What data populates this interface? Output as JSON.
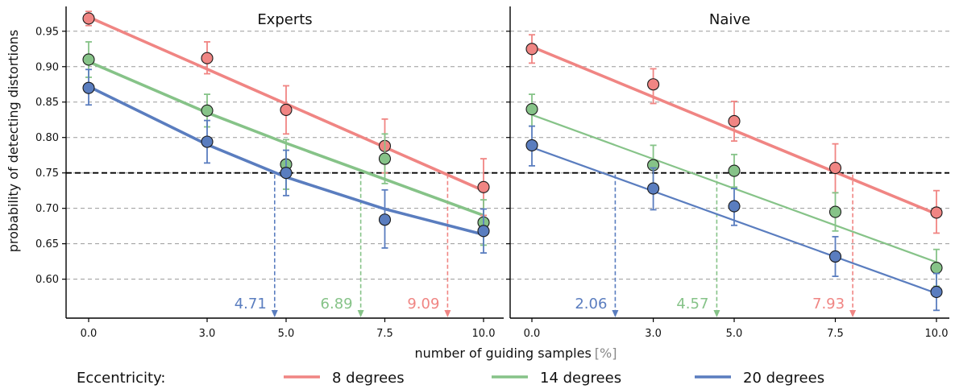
{
  "chart_data": {
    "type": "line",
    "ylabel": "probability of detecting distortions",
    "xlabel": "number of guiding samples",
    "xlabel_unit": "[%]",
    "threshold": 0.75,
    "x_ticks": [
      0.0,
      3.0,
      5.0,
      7.5,
      10.0
    ],
    "x_tick_labels": [
      "0.0",
      "3.0",
      "5.0",
      "7.5",
      "10.0"
    ],
    "y_ticks": [
      0.6,
      0.65,
      0.7,
      0.75,
      0.8,
      0.85,
      0.9,
      0.95
    ],
    "y_tick_labels": [
      "0.60",
      "0.65",
      "0.70",
      "0.75",
      "0.80",
      "0.85",
      "0.90",
      "0.95"
    ],
    "ylim": [
      0.545,
      0.985
    ],
    "xlim": [
      -0.6,
      10.5
    ],
    "grid": "horizontal-dashed",
    "legend": {
      "title": "Eccentricity:",
      "placement": "bottom",
      "entries": [
        "8 degrees",
        "14 degrees",
        "20 degrees"
      ]
    },
    "colors": {
      "8 degrees": "#f08583",
      "14 degrees": "#86c388",
      "20 degrees": "#5a7dbf"
    },
    "panels": [
      {
        "title": "Experts",
        "series": [
          {
            "name": "8 degrees",
            "x": [
              0,
              3,
              5,
              7.5,
              10
            ],
            "y": [
              0.968,
              0.912,
              0.839,
              0.788,
              0.73
            ],
            "err_low": [
              0.958,
              0.89,
              0.805,
              0.75,
              0.69
            ],
            "err_high": [
              0.978,
              0.935,
              0.873,
              0.826,
              0.77
            ],
            "fit": [
              [
                0,
                0.97
              ],
              [
                10,
                0.725
              ]
            ],
            "threshold_x": 9.09
          },
          {
            "name": "14 degrees",
            "x": [
              0,
              3,
              5,
              7.5,
              10
            ],
            "y": [
              0.91,
              0.838,
              0.762,
              0.77,
              0.68
            ],
            "err_low": [
              0.885,
              0.815,
              0.727,
              0.735,
              0.648
            ],
            "err_high": [
              0.935,
              0.861,
              0.797,
              0.805,
              0.712
            ],
            "fit": [
              [
                0,
                0.907
              ],
              [
                3,
                0.835
              ],
              [
                5,
                0.792
              ],
              [
                7.5,
                0.741
              ],
              [
                10,
                0.69
              ]
            ],
            "threshold_x": 6.89
          },
          {
            "name": "20 degrees",
            "x": [
              0,
              3,
              5,
              7.5,
              10
            ],
            "y": [
              0.87,
              0.794,
              0.75,
              0.684,
              0.668
            ],
            "err_low": [
              0.846,
              0.764,
              0.718,
              0.644,
              0.637
            ],
            "err_high": [
              0.896,
              0.824,
              0.782,
              0.726,
              0.699
            ],
            "fit": [
              [
                0,
                0.872
              ],
              [
                3,
                0.79
              ],
              [
                5,
                0.744
              ],
              [
                7.5,
                0.699
              ],
              [
                10,
                0.663
              ]
            ],
            "threshold_x": 4.71
          }
        ]
      },
      {
        "title": "Naive",
        "series": [
          {
            "name": "8 degrees",
            "x": [
              0,
              3,
              5,
              7.5,
              10
            ],
            "y": [
              0.925,
              0.875,
              0.823,
              0.757,
              0.694
            ],
            "err_low": [
              0.905,
              0.848,
              0.795,
              0.722,
              0.665
            ],
            "err_high": [
              0.945,
              0.897,
              0.851,
              0.791,
              0.725
            ],
            "fit": [
              [
                0,
                0.928
              ],
              [
                10,
                0.692
              ]
            ],
            "threshold_x": 7.93
          },
          {
            "name": "14 degrees",
            "x": [
              0,
              3,
              5,
              7.5,
              10
            ],
            "y": [
              0.84,
              0.761,
              0.753,
              0.695,
              0.616
            ],
            "err_low": [
              0.816,
              0.733,
              0.73,
              0.668,
              0.59
            ],
            "err_high": [
              0.861,
              0.789,
              0.776,
              0.722,
              0.642
            ],
            "fit": [
              [
                0,
                0.832
              ],
              [
                10,
                0.624
              ]
            ],
            "threshold_x": 4.57
          },
          {
            "name": "20 degrees",
            "x": [
              0,
              3,
              5,
              7.5,
              10
            ],
            "y": [
              0.789,
              0.728,
              0.703,
              0.632,
              0.582
            ],
            "err_low": [
              0.76,
              0.698,
              0.676,
              0.604,
              0.556
            ],
            "err_high": [
              0.816,
              0.757,
              0.728,
              0.66,
              0.608
            ],
            "fit": [
              [
                0,
                0.786
              ],
              [
                10,
                0.58
              ]
            ],
            "threshold_x": 2.06
          }
        ]
      }
    ]
  }
}
